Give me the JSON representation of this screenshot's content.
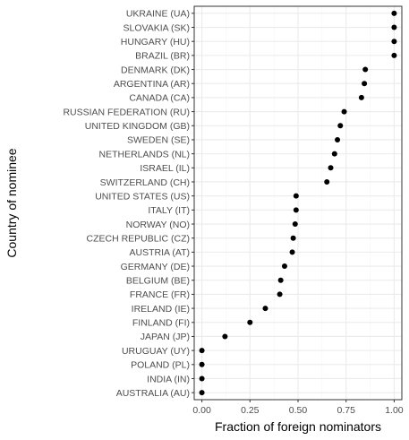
{
  "chart_data": {
    "type": "scatter",
    "title": "",
    "xlabel": "Fraction of foreign nominators",
    "ylabel": "Country of nominee",
    "xlim": [
      -0.04,
      1.04
    ],
    "xticks": [
      {
        "value": 0.0,
        "label": "0.00"
      },
      {
        "value": 0.25,
        "label": "0.25"
      },
      {
        "value": 0.5,
        "label": "0.50"
      },
      {
        "value": 0.75,
        "label": "0.75"
      },
      {
        "value": 1.0,
        "label": "1.00"
      }
    ],
    "grid": true,
    "legend": "none",
    "categories": [
      "UKRAINE (UA)",
      "SLOVAKIA (SK)",
      "HUNGARY (HU)",
      "BRAZIL (BR)",
      "DENMARK (DK)",
      "ARGENTINA (AR)",
      "CANADA (CA)",
      "RUSSIAN FEDERATION (RU)",
      "UNITED KINGDOM (GB)",
      "SWEDEN (SE)",
      "NETHERLANDS (NL)",
      "ISRAEL (IL)",
      "SWITZERLAND (CH)",
      "UNITED STATES (US)",
      "ITALY (IT)",
      "NORWAY (NO)",
      "CZECH REPUBLIC (CZ)",
      "AUSTRIA (AT)",
      "GERMANY (DE)",
      "BELGIUM (BE)",
      "FRANCE (FR)",
      "IRELAND (IE)",
      "FINLAND (FI)",
      "JAPAN (JP)",
      "URUGUAY (UY)",
      "POLAND (PL)",
      "INDIA (IN)",
      "AUSTRALIA (AU)"
    ],
    "values": [
      1.0,
      1.0,
      1.0,
      1.0,
      0.85,
      0.845,
      0.83,
      0.74,
      0.72,
      0.705,
      0.69,
      0.67,
      0.65,
      0.49,
      0.49,
      0.485,
      0.475,
      0.47,
      0.43,
      0.41,
      0.405,
      0.33,
      0.25,
      0.12,
      0.0,
      0.0,
      0.0,
      0.0
    ],
    "colors": {
      "point": "#000000",
      "panel_border": "#333333",
      "grid_major": "#ebebeb",
      "grid_minor": "#f5f5f5"
    }
  }
}
